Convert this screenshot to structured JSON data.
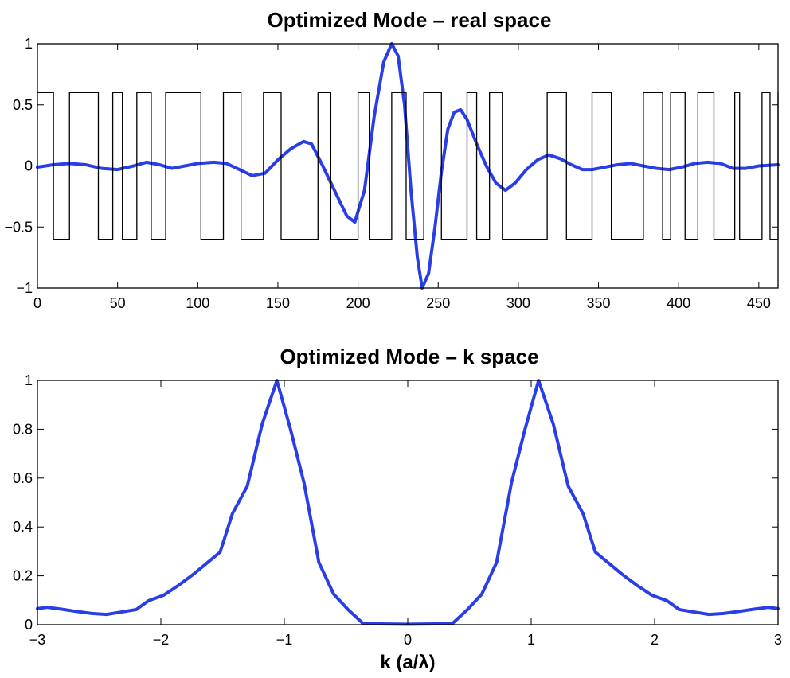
{
  "chart_data": [
    {
      "type": "line",
      "title": "Optimized Mode – real space",
      "xlabel": "",
      "ylabel": "",
      "xlim": [
        0,
        462
      ],
      "ylim": [
        -1,
        1
      ],
      "xticks": [
        0,
        50,
        100,
        150,
        200,
        250,
        300,
        350,
        400,
        450
      ],
      "xtick_labels": [
        "0",
        "50",
        "100",
        "150",
        "200",
        "250",
        "300",
        "350",
        "400",
        "450"
      ],
      "yticks": [
        -1,
        -0.5,
        0,
        0.5,
        1
      ],
      "ytick_labels": [
        "−1",
        "−0.5",
        "0",
        "0.5",
        "1"
      ],
      "grid": false,
      "legend": "none",
      "series": [
        {
          "color": "#2a3ee8",
          "style": "solid-thick",
          "x": [
            0,
            10,
            20,
            30,
            40,
            50,
            60,
            68,
            76,
            84,
            92,
            100,
            110,
            118,
            126,
            134,
            142,
            150,
            158,
            166,
            171,
            178,
            186,
            193,
            198,
            204,
            210,
            216,
            221,
            225,
            229,
            233,
            237,
            240,
            244,
            248,
            252,
            256,
            260,
            264,
            268,
            274,
            280,
            286,
            292,
            298,
            305,
            312,
            319,
            326,
            333,
            340,
            346,
            354,
            362,
            370,
            378,
            386,
            394,
            402,
            410,
            418,
            426,
            434,
            442,
            450,
            462
          ],
          "y": [
            -0.01,
            0.01,
            0.02,
            0.01,
            -0.02,
            -0.03,
            0.0,
            0.03,
            0.01,
            -0.02,
            0.0,
            0.02,
            0.03,
            0.02,
            -0.03,
            -0.08,
            -0.06,
            0.05,
            0.14,
            0.2,
            0.18,
            0.0,
            -0.22,
            -0.41,
            -0.46,
            -0.2,
            0.4,
            0.85,
            1.0,
            0.9,
            0.5,
            -0.2,
            -0.75,
            -1.0,
            -0.88,
            -0.5,
            -0.05,
            0.3,
            0.44,
            0.46,
            0.38,
            0.18,
            0.0,
            -0.14,
            -0.2,
            -0.14,
            -0.03,
            0.05,
            0.09,
            0.06,
            0.01,
            -0.03,
            -0.03,
            -0.01,
            0.01,
            0.02,
            0.0,
            -0.02,
            -0.03,
            -0.01,
            0.02,
            0.03,
            0.02,
            -0.02,
            -0.02,
            0.0,
            0.01
          ]
        },
        {
          "color": "#000000",
          "style": "step",
          "low": -0.6,
          "high": 0.6,
          "x_start": 0,
          "x_end": 462,
          "start_state": "high",
          "transitions": [
            10,
            20,
            38,
            47,
            53,
            62,
            71,
            80,
            102,
            116,
            127,
            141,
            152,
            175,
            183,
            200,
            207,
            221,
            230,
            241,
            252,
            268,
            274,
            282,
            290,
            318,
            330,
            346,
            358,
            378,
            390,
            395,
            404,
            412,
            422,
            435,
            438,
            452,
            457,
            462
          ]
        }
      ]
    },
    {
      "type": "line",
      "title": "Optimized Mode – k space",
      "xlabel": "k (a/λ)",
      "ylabel": "",
      "xlim": [
        -3,
        3
      ],
      "ylim": [
        0,
        1
      ],
      "xticks": [
        -3,
        -2,
        -1,
        0,
        1,
        2,
        3
      ],
      "xtick_labels": [
        "−3",
        "−2",
        "−1",
        "0",
        "1",
        "2",
        "3"
      ],
      "yticks": [
        0,
        0.2,
        0.4,
        0.6,
        0.8,
        1
      ],
      "ytick_labels": [
        "0",
        "0.2",
        "0.4",
        "0.6",
        "0.8",
        "1"
      ],
      "grid": false,
      "legend": "none",
      "series": [
        {
          "color": "#2a3ee8",
          "style": "solid-thick",
          "x": [
            -3.0,
            -2.92,
            -2.8,
            -2.68,
            -2.56,
            -2.44,
            -2.32,
            -2.2,
            -2.1,
            -1.98,
            -1.86,
            -1.74,
            -1.62,
            -1.52,
            -1.42,
            -1.3,
            -1.18,
            -1.06,
            -0.95,
            -0.84,
            -0.72,
            -0.6,
            -0.48,
            -0.36,
            0.0,
            0.36,
            0.48,
            0.6,
            0.72,
            0.84,
            0.95,
            1.06,
            1.18,
            1.3,
            1.42,
            1.52,
            1.62,
            1.74,
            1.86,
            1.98,
            2.1,
            2.2,
            2.32,
            2.44,
            2.56,
            2.68,
            2.8,
            2.92,
            3.0
          ],
          "y": [
            0.066,
            0.071,
            0.063,
            0.054,
            0.046,
            0.042,
            0.052,
            0.062,
            0.098,
            0.12,
            0.16,
            0.205,
            0.255,
            0.297,
            0.455,
            0.567,
            0.82,
            1.0,
            0.8,
            0.58,
            0.255,
            0.125,
            0.06,
            0.004,
            0.002,
            0.004,
            0.06,
            0.125,
            0.255,
            0.58,
            0.8,
            1.0,
            0.82,
            0.567,
            0.455,
            0.297,
            0.255,
            0.205,
            0.16,
            0.12,
            0.098,
            0.062,
            0.052,
            0.042,
            0.046,
            0.054,
            0.063,
            0.071,
            0.066
          ]
        }
      ]
    }
  ]
}
